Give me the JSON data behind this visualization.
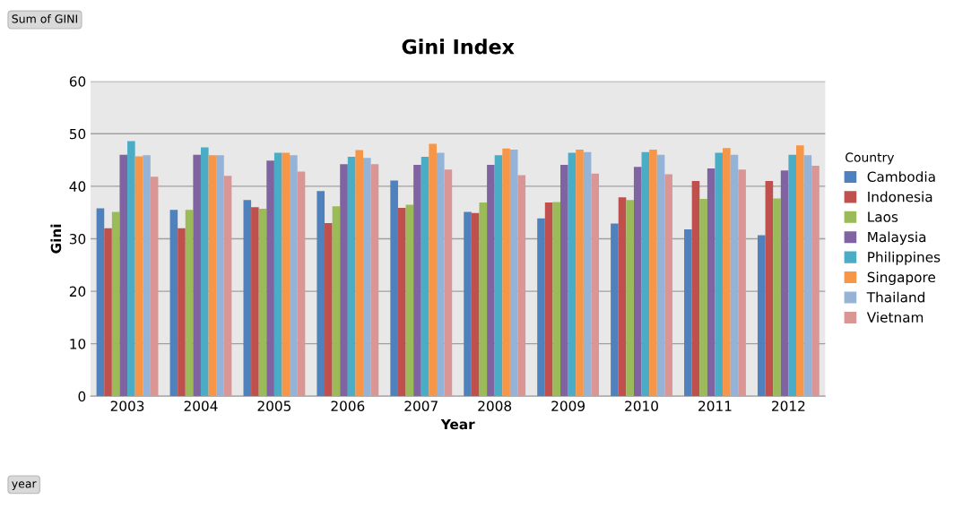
{
  "chart_data": {
    "type": "bar",
    "title": "Gini Index",
    "xlabel": "Year",
    "ylabel": "Gini",
    "legend_title": "Country",
    "annotations": [
      "Sum of GINI",
      "year"
    ],
    "categories": [
      "2003",
      "2004",
      "2005",
      "2006",
      "2007",
      "2008",
      "2009",
      "2010",
      "2011",
      "2012"
    ],
    "series": [
      {
        "name": "Cambodia",
        "color": "#4f81bd",
        "values": [
          35.8,
          35.5,
          37.4,
          39.1,
          41.1,
          35.1,
          33.9,
          32.9,
          31.8,
          30.7
        ]
      },
      {
        "name": "Indonesia",
        "color": "#c0504d",
        "values": [
          32.0,
          32.0,
          36.0,
          33.0,
          35.9,
          34.9,
          36.9,
          37.9,
          41.0,
          41.0
        ]
      },
      {
        "name": "Laos",
        "color": "#9bbb59",
        "values": [
          35.1,
          35.5,
          35.7,
          36.2,
          36.5,
          36.9,
          37.0,
          37.4,
          37.6,
          37.7
        ]
      },
      {
        "name": "Malaysia",
        "color": "#8064a2",
        "values": [
          46.0,
          46.0,
          44.9,
          44.2,
          44.1,
          44.1,
          44.1,
          43.7,
          43.4,
          43.0
        ]
      },
      {
        "name": "Philippines",
        "color": "#4bacc6",
        "values": [
          48.6,
          47.4,
          46.4,
          45.6,
          45.6,
          45.9,
          46.4,
          46.5,
          46.4,
          46.0
        ]
      },
      {
        "name": "Singapore",
        "color": "#f79646",
        "values": [
          45.7,
          45.9,
          46.4,
          46.9,
          48.1,
          47.2,
          47.0,
          47.0,
          47.3,
          47.8
        ]
      },
      {
        "name": "Thailand",
        "color": "#95b3d7",
        "values": [
          45.9,
          45.9,
          45.9,
          45.4,
          46.4,
          47.0,
          46.5,
          46.0,
          46.0,
          45.9
        ]
      },
      {
        "name": "Vietnam",
        "color": "#d99694",
        "values": [
          41.8,
          42.0,
          42.8,
          44.2,
          43.2,
          42.1,
          42.4,
          42.3,
          43.2,
          43.9
        ]
      }
    ],
    "ylim": [
      0,
      60
    ],
    "yticks": [
      0,
      10,
      20,
      30,
      40,
      50,
      60
    ],
    "grid": "y",
    "legend": "right"
  }
}
